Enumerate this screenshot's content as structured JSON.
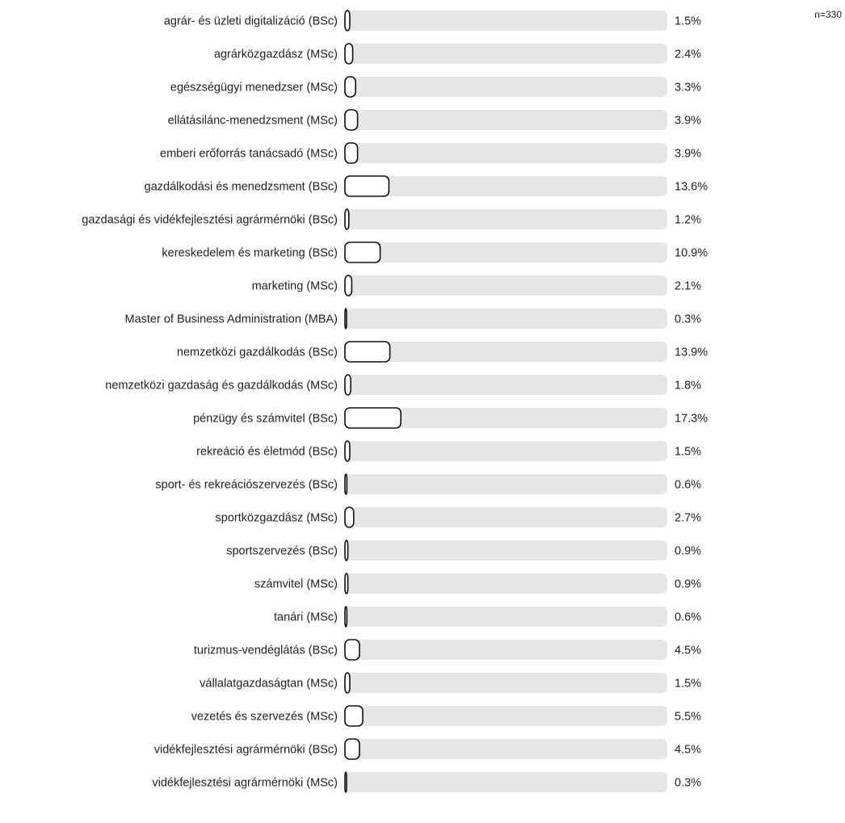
{
  "n_label": "n=330",
  "chart_data": {
    "type": "bar",
    "orientation": "horizontal",
    "value_suffix": "%",
    "xlim": [
      0,
      100
    ],
    "colors": {
      "track": "#e6e6e6",
      "bar_fill": "#ffffff",
      "bar_stroke": "#111111"
    },
    "categories": [
      "agrár- és üzleti digitalizáció (BSc)",
      "agrárközgazdász (MSc)",
      "egészségügyi menedzser (MSc)",
      "ellátásilánc-menedzsment (MSc)",
      "emberi erőforrás tanácsadó (MSc)",
      "gazdálkodási és menedzsment (BSc)",
      "gazdasági és vidékfejlesztési agrármérnöki (BSc)",
      "kereskedelem és marketing (BSc)",
      "marketing (MSc)",
      "Master of Business Administration (MBA)",
      "nemzetközi gazdálkodás (BSc)",
      "nemzetközi gazdaság és gazdálkodás (MSc)",
      "pénzügy és számvitel (BSc)",
      "rekreáció és életmód (BSc)",
      "sport- és rekreációszervezés (BSc)",
      "sportközgazdász (MSc)",
      "sportszervezés (BSc)",
      "számvitel (MSc)",
      "tanári (MSc)",
      "turizmus-vendéglátás (BSc)",
      "vállalatgazdaságtan (MSc)",
      "vezetés és szervezés (MSc)",
      "vidékfejlesztési agrármérnöki (BSc)",
      "vidékfejlesztési agrármérnöki (MSc)"
    ],
    "values": [
      1.5,
      2.4,
      3.3,
      3.9,
      3.9,
      13.6,
      1.2,
      10.9,
      2.1,
      0.3,
      13.9,
      1.8,
      17.3,
      1.5,
      0.6,
      2.7,
      0.9,
      0.9,
      0.6,
      4.5,
      1.5,
      5.5,
      4.5,
      0.3
    ],
    "value_labels": [
      "1.5%",
      "2.4%",
      "3.3%",
      "3.9%",
      "3.9%",
      "13.6%",
      "1.2%",
      "10.9%",
      "2.1%",
      "0.3%",
      "13.9%",
      "1.8%",
      "17.3%",
      "1.5%",
      "0.6%",
      "2.7%",
      "0.9%",
      "0.9%",
      "0.6%",
      "4.5%",
      "1.5%",
      "5.5%",
      "4.5%",
      "0.3%"
    ]
  }
}
